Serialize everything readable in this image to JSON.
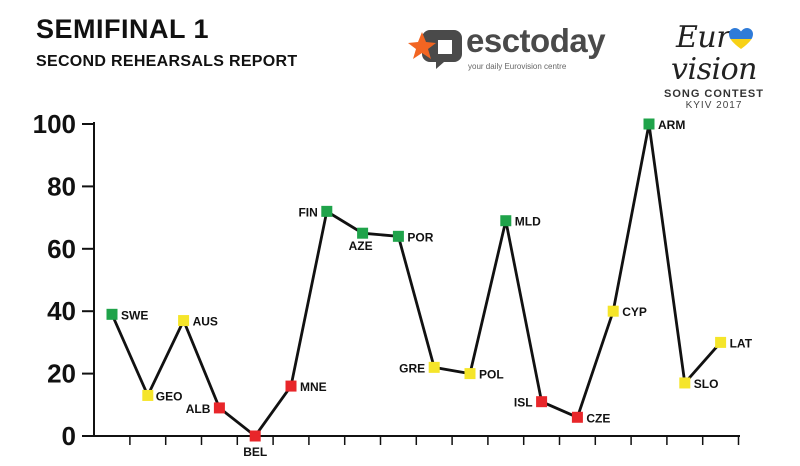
{
  "header": {
    "title": "SEMIFINAL 1",
    "subtitle": "SECOND REHEARSALS REPORT"
  },
  "logos": {
    "brand_name": "esctoday",
    "brand_tagline": "your daily Eurovision centre",
    "event_name_left": "Eur",
    "event_name_right": "vision",
    "event_subtitle": "SONG CONTEST",
    "event_city": "KYIV 2017"
  },
  "colors": {
    "green": "#1fa34a",
    "yellow": "#f5e52a",
    "red": "#e8262a",
    "brand_orange": "#f26522",
    "line": "#111111"
  },
  "chart_data": {
    "type": "line",
    "title": "SEMIFINAL 1",
    "subtitle": "SECOND REHEARSALS REPORT",
    "xlabel": "",
    "ylabel": "",
    "ylim": [
      0,
      100
    ],
    "yticks": [
      0,
      20,
      40,
      60,
      80,
      100
    ],
    "grid": false,
    "series": [
      {
        "points": [
          {
            "label": "SWE",
            "value": 39,
            "rating": "green"
          },
          {
            "label": "GEO",
            "value": 13,
            "rating": "yellow"
          },
          {
            "label": "AUS",
            "value": 37,
            "rating": "yellow"
          },
          {
            "label": "ALB",
            "value": 9,
            "rating": "red"
          },
          {
            "label": "BEL",
            "value": 0,
            "rating": "red"
          },
          {
            "label": "MNE",
            "value": 16,
            "rating": "red"
          },
          {
            "label": "FIN",
            "value": 72,
            "rating": "green"
          },
          {
            "label": "AZE",
            "value": 65,
            "rating": "green"
          },
          {
            "label": "POR",
            "value": 64,
            "rating": "green"
          },
          {
            "label": "GRE",
            "value": 22,
            "rating": "yellow"
          },
          {
            "label": "POL",
            "value": 20,
            "rating": "yellow"
          },
          {
            "label": "MLD",
            "value": 69,
            "rating": "green"
          },
          {
            "label": "ISL",
            "value": 11,
            "rating": "red"
          },
          {
            "label": "CZE",
            "value": 6,
            "rating": "red"
          },
          {
            "label": "CYP",
            "value": 40,
            "rating": "yellow"
          },
          {
            "label": "ARM",
            "value": 100,
            "rating": "green"
          },
          {
            "label": "SLO",
            "value": 17,
            "rating": "yellow"
          },
          {
            "label": "LAT",
            "value": 30,
            "rating": "yellow"
          }
        ]
      }
    ]
  }
}
